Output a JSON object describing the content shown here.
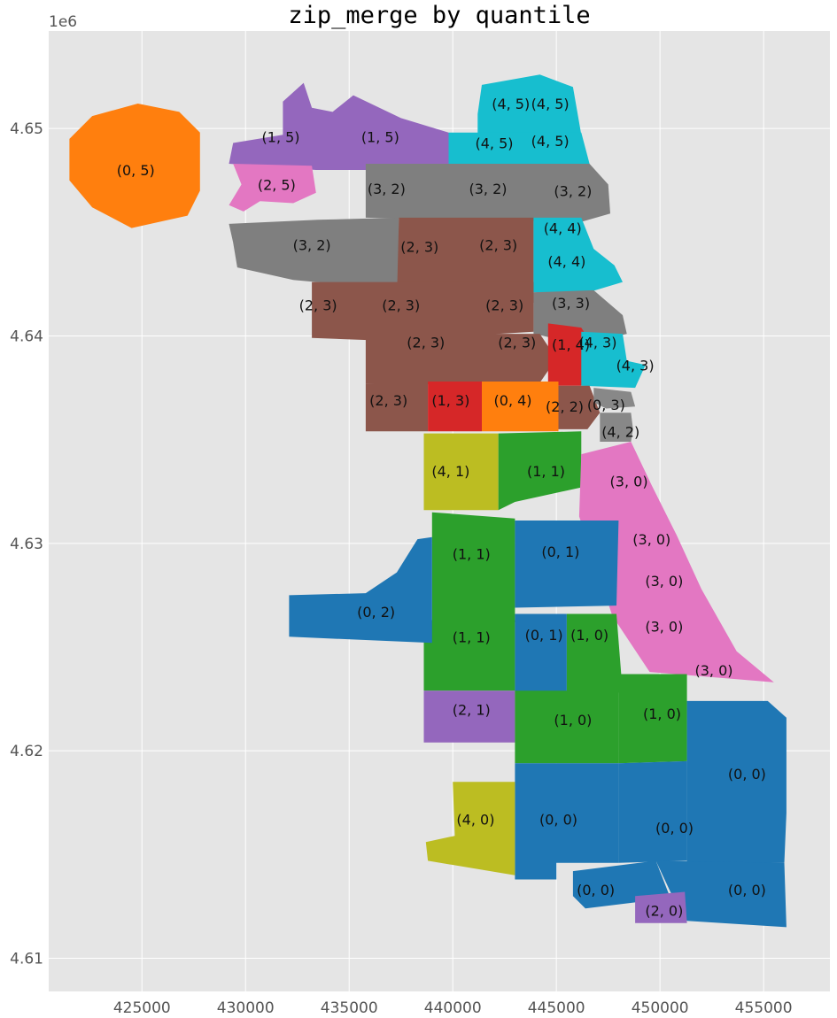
{
  "title": "zip_merge by quantile",
  "exponent_label": "1e6",
  "axes": {
    "x_ticks": [
      "425000",
      "430000",
      "435000",
      "440000",
      "445000",
      "450000",
      "455000"
    ],
    "y_ticks": [
      "4.65",
      "4.64",
      "4.63",
      "4.62",
      "4.61"
    ],
    "xlim": [
      420500,
      458200
    ],
    "ylim": [
      4608400,
      4654700
    ],
    "grid": true
  },
  "colors": {
    "plot_bg": "#e5e5e5",
    "grid": "#ffffff",
    "(0, 0)": "#1f77b4",
    "(0, 1)": "#1f77b4",
    "(0, 2)": "#1f77b4",
    "(1, 0)": "#2ca02c",
    "(1, 1)": "#2ca02c",
    "(2, 0)": "#9467bd",
    "(2, 1)": "#9467bd",
    "(1, 5)": "#9467bd",
    "(0, 5)": "#ff7f0e",
    "(0, 4)": "#ff7f0e",
    "(2, 5)": "#e377c2",
    "(3, 0)": "#e377c2",
    "(3, 2)": "#7f7f7f",
    "(3, 3)": "#7f7f7f",
    "(2, 3)": "#8c564b",
    "(2, 2)": "#8c564b",
    "(1, 3)": "#d62728",
    "(1, 4)": "#d62728",
    "(4, 0)": "#bcbd22",
    "(4, 1)": "#bcbd22",
    "(4, 3)": "#17becf",
    "(4, 4)": "#17becf",
    "(4, 5)": "#17becf"
  },
  "regions": [
    {
      "label": "(0, 5)",
      "x": 424700,
      "y": 4648000,
      "pts": [
        [
          421500,
          4649500
        ],
        [
          422600,
          4650600
        ],
        [
          424800,
          4651200
        ],
        [
          426800,
          4650800
        ],
        [
          427800,
          4649800
        ],
        [
          427800,
          4647000
        ],
        [
          427200,
          4645800
        ],
        [
          424500,
          4645200
        ],
        [
          422600,
          4646200
        ],
        [
          421500,
          4647500
        ]
      ]
    },
    {
      "label": "(1, 5)",
      "x": 431700,
      "y": 4649600,
      "pts": [
        [
          429200,
          4648300
        ],
        [
          429400,
          4649300
        ],
        [
          431800,
          4649700
        ],
        [
          431800,
          4651300
        ],
        [
          432800,
          4652200
        ],
        [
          433200,
          4651000
        ],
        [
          434200,
          4650800
        ],
        [
          435200,
          4651600
        ],
        [
          437500,
          4650500
        ],
        [
          439800,
          4649800
        ],
        [
          439800,
          4648300
        ],
        [
          437500,
          4648000
        ],
        [
          433400,
          4648000
        ]
      ]
    },
    {
      "label": "(1, 5)",
      "x": 436500,
      "y": 4649600,
      "pts": []
    },
    {
      "label": "(2, 5)",
      "x": 431500,
      "y": 4647300,
      "pts": [
        [
          429400,
          4648300
        ],
        [
          433200,
          4648200
        ],
        [
          433400,
          4646900
        ],
        [
          432300,
          4646400
        ],
        [
          430700,
          4646500
        ],
        [
          429900,
          4646000
        ],
        [
          429200,
          4646300
        ],
        [
          429800,
          4647300
        ]
      ]
    },
    {
      "label": "(4, 5)",
      "x": 442800,
      "y": 4651200,
      "pts": [
        [
          441200,
          4650700
        ],
        [
          441400,
          4652100
        ],
        [
          444200,
          4652600
        ],
        [
          445800,
          4652000
        ],
        [
          446200,
          4649700
        ],
        [
          441200,
          4649600
        ]
      ]
    },
    {
      "label": "(4, 5)",
      "x": 444700,
      "y": 4651200,
      "pts": []
    },
    {
      "label": "(4, 5)",
      "x": 442000,
      "y": 4649300,
      "pts": [
        [
          439800,
          4648300
        ],
        [
          439800,
          4649800
        ],
        [
          446200,
          4649800
        ],
        [
          446600,
          4648300
        ]
      ]
    },
    {
      "label": "(4, 5)",
      "x": 444700,
      "y": 4649400,
      "pts": []
    },
    {
      "label": "(3, 2)",
      "x": 436800,
      "y": 4647100,
      "pts": [
        [
          435800,
          4648300
        ],
        [
          446600,
          4648300
        ],
        [
          447500,
          4647300
        ],
        [
          447600,
          4645900
        ],
        [
          446200,
          4645500
        ],
        [
          435800,
          4645700
        ]
      ]
    },
    {
      "label": "(3, 2)",
      "x": 441700,
      "y": 4647100,
      "pts": []
    },
    {
      "label": "(3, 2)",
      "x": 445800,
      "y": 4647000,
      "pts": []
    },
    {
      "label": "(3, 2)",
      "x": 433200,
      "y": 4644400,
      "pts": [
        [
          429200,
          4645400
        ],
        [
          433500,
          4645600
        ],
        [
          437400,
          4645700
        ],
        [
          437400,
          4642300
        ],
        [
          434500,
          4642500
        ],
        [
          432300,
          4642700
        ],
        [
          429600,
          4643300
        ],
        [
          429400,
          4644500
        ]
      ]
    },
    {
      "label": "(2, 3)",
      "x": 438400,
      "y": 4644300,
      "pts": [
        [
          437400,
          4645700
        ],
        [
          443900,
          4645700
        ],
        [
          443900,
          4641600
        ],
        [
          437300,
          4641600
        ]
      ]
    },
    {
      "label": "(2, 3)",
      "x": 442200,
      "y": 4644400,
      "pts": []
    },
    {
      "label": "(4, 4)",
      "x": 445300,
      "y": 4645200,
      "pts": [
        [
          443900,
          4645700
        ],
        [
          446200,
          4645700
        ],
        [
          446800,
          4644200
        ],
        [
          447800,
          4643400
        ],
        [
          448200,
          4642600
        ],
        [
          446200,
          4642000
        ],
        [
          443900,
          4642100
        ]
      ]
    },
    {
      "label": "(4, 4)",
      "x": 445500,
      "y": 4643600,
      "pts": []
    },
    {
      "label": "(3, 3)",
      "x": 445700,
      "y": 4641600,
      "pts": [
        [
          443900,
          4642100
        ],
        [
          446800,
          4642200
        ],
        [
          448200,
          4641000
        ],
        [
          448400,
          4640100
        ],
        [
          446200,
          4639600
        ],
        [
          443900,
          4640100
        ]
      ]
    },
    {
      "label": "(2, 3)",
      "x": 433500,
      "y": 4641500,
      "pts": [
        [
          433200,
          4642600
        ],
        [
          443900,
          4642600
        ],
        [
          443900,
          4640200
        ],
        [
          442200,
          4640100
        ],
        [
          438600,
          4639700
        ],
        [
          433200,
          4639900
        ]
      ]
    },
    {
      "label": "(2, 3)",
      "x": 437500,
      "y": 4641500,
      "pts": []
    },
    {
      "label": "(2, 3)",
      "x": 442500,
      "y": 4641500,
      "pts": []
    },
    {
      "label": "(2, 3)",
      "x": 438700,
      "y": 4639700,
      "pts": [
        [
          435800,
          4640100
        ],
        [
          444200,
          4640100
        ],
        [
          445000,
          4638900
        ],
        [
          444100,
          4637600
        ],
        [
          435800,
          4637700
        ]
      ]
    },
    {
      "label": "(2, 3)",
      "x": 443100,
      "y": 4639700,
      "pts": []
    },
    {
      "label": "(2, 3)",
      "x": 436900,
      "y": 4636900,
      "pts": [
        [
          435800,
          4637700
        ],
        [
          438800,
          4637700
        ],
        [
          438800,
          4635400
        ],
        [
          435800,
          4635400
        ]
      ]
    },
    {
      "label": "(1, 4)",
      "x": 445700,
      "y": 4639600,
      "pts": [
        [
          444600,
          4640600
        ],
        [
          446200,
          4640400
        ],
        [
          446800,
          4639400
        ],
        [
          446200,
          4637600
        ],
        [
          444600,
          4637600
        ]
      ]
    },
    {
      "label": "(4, 3)",
      "x": 447000,
      "y": 4639700,
      "pts": [
        [
          446200,
          4640200
        ],
        [
          448200,
          4640100
        ],
        [
          448400,
          4638800
        ],
        [
          449300,
          4638600
        ],
        [
          448800,
          4637500
        ],
        [
          446200,
          4637600
        ]
      ]
    },
    {
      "label": "(4, 3)",
      "x": 448800,
      "y": 4638600,
      "pts": []
    },
    {
      "label": "(1, 3)",
      "x": 439900,
      "y": 4636900,
      "pts": [
        [
          438800,
          4637800
        ],
        [
          441400,
          4637800
        ],
        [
          441400,
          4635400
        ],
        [
          438800,
          4635400
        ]
      ]
    },
    {
      "label": "(0, 4)",
      "x": 442900,
      "y": 4636900,
      "pts": [
        [
          441400,
          4637800
        ],
        [
          445100,
          4637800
        ],
        [
          445100,
          4635400
        ],
        [
          441400,
          4635400
        ]
      ]
    },
    {
      "label": "(2, 2)",
      "x": 445400,
      "y": 4636600,
      "pts": [
        [
          445100,
          4637600
        ],
        [
          446600,
          4637600
        ],
        [
          447100,
          4636300
        ],
        [
          446500,
          4635500
        ],
        [
          445100,
          4635500
        ]
      ]
    },
    {
      "label": "(0, 3)",
      "x": 447400,
      "y": 4636700,
      "pts": [
        [
          446800,
          4637500
        ],
        [
          448600,
          4637300
        ],
        [
          448800,
          4636600
        ],
        [
          447400,
          4636500
        ],
        [
          446800,
          4636800
        ]
      ]
    },
    {
      "label": "(4, 2)",
      "x": 448100,
      "y": 4635400,
      "pts": [
        [
          447100,
          4636300
        ],
        [
          448600,
          4636300
        ],
        [
          448700,
          4635500
        ],
        [
          448600,
          4634900
        ],
        [
          447100,
          4634900
        ]
      ]
    },
    {
      "label": "(4, 1)",
      "x": 439900,
      "y": 4633500,
      "pts": [
        [
          438600,
          4635300
        ],
        [
          442200,
          4635300
        ],
        [
          442200,
          4631600
        ],
        [
          438600,
          4631600
        ]
      ]
    },
    {
      "label": "(1, 1)",
      "x": 444500,
      "y": 4633500,
      "pts": [
        [
          442200,
          4635300
        ],
        [
          446200,
          4635400
        ],
        [
          446200,
          4632700
        ],
        [
          443000,
          4632000
        ],
        [
          442200,
          4631600
        ]
      ]
    },
    {
      "label": "(3, 0)",
      "x": 448500,
      "y": 4633000,
      "pts": [
        [
          446200,
          4634300
        ],
        [
          448600,
          4634900
        ],
        [
          449600,
          4632800
        ],
        [
          450800,
          4630400
        ],
        [
          452000,
          4627800
        ],
        [
          453700,
          4624800
        ],
        [
          455500,
          4623300
        ],
        [
          449500,
          4623800
        ],
        [
          447700,
          4626500
        ],
        [
          446100,
          4631300
        ]
      ]
    },
    {
      "label": "(3, 0)",
      "x": 449600,
      "y": 4630200,
      "pts": []
    },
    {
      "label": "(3, 0)",
      "x": 450200,
      "y": 4628200,
      "pts": []
    },
    {
      "label": "(3, 0)",
      "x": 450200,
      "y": 4626000,
      "pts": []
    },
    {
      "label": "(3, 0)",
      "x": 452600,
      "y": 4623900,
      "pts": []
    },
    {
      "label": "(1, 1)",
      "x": 440900,
      "y": 4629500,
      "pts": [
        [
          439000,
          4631500
        ],
        [
          443000,
          4631200
        ],
        [
          443000,
          4626200
        ],
        [
          439000,
          4626200
        ],
        [
          439000,
          4629800
        ]
      ]
    },
    {
      "label": "(1, 1)",
      "x": 440900,
      "y": 4625500,
      "pts": [
        [
          438600,
          4626300
        ],
        [
          443000,
          4626300
        ],
        [
          443000,
          4622900
        ],
        [
          438600,
          4622900
        ]
      ]
    },
    {
      "label": "(0, 1)",
      "x": 445200,
      "y": 4629600,
      "pts": [
        [
          443000,
          4631100
        ],
        [
          448000,
          4631100
        ],
        [
          447900,
          4627000
        ],
        [
          443000,
          4626900
        ]
      ]
    },
    {
      "label": "(0, 1)",
      "x": 444400,
      "y": 4625600,
      "pts": [
        [
          443000,
          4626600
        ],
        [
          445500,
          4626600
        ],
        [
          445500,
          4622800
        ],
        [
          443000,
          4622800
        ]
      ]
    },
    {
      "label": "(1, 0)",
      "x": 446600,
      "y": 4625600,
      "pts": [
        [
          445500,
          4626600
        ],
        [
          447900,
          4626600
        ],
        [
          448200,
          4622800
        ],
        [
          445500,
          4622800
        ]
      ]
    },
    {
      "label": "(0, 2)",
      "x": 436300,
      "y": 4626700,
      "pts": [
        [
          432100,
          4627500
        ],
        [
          435800,
          4627600
        ],
        [
          437300,
          4628600
        ],
        [
          438300,
          4630200
        ],
        [
          439000,
          4630300
        ],
        [
          439000,
          4625200
        ],
        [
          432100,
          4625500
        ]
      ]
    },
    {
      "label": "(2, 1)",
      "x": 440900,
      "y": 4622000,
      "pts": [
        [
          438600,
          4622900
        ],
        [
          443000,
          4622900
        ],
        [
          443000,
          4620400
        ],
        [
          438600,
          4620400
        ]
      ]
    },
    {
      "label": "(1, 0)",
      "x": 445800,
      "y": 4621500,
      "pts": [
        [
          443000,
          4622900
        ],
        [
          448000,
          4622900
        ],
        [
          448000,
          4619400
        ],
        [
          443000,
          4619400
        ]
      ]
    },
    {
      "label": "(1, 0)",
      "x": 450100,
      "y": 4621800,
      "pts": [
        [
          448000,
          4623700
        ],
        [
          451300,
          4623700
        ],
        [
          451300,
          4619500
        ],
        [
          448000,
          4619400
        ]
      ]
    },
    {
      "label": "(0, 0)",
      "x": 454200,
      "y": 4618900,
      "pts": [
        [
          451300,
          4622400
        ],
        [
          455200,
          4622400
        ],
        [
          456100,
          4621600
        ],
        [
          456100,
          4617000
        ],
        [
          456000,
          4614600
        ],
        [
          451300,
          4614600
        ]
      ]
    },
    {
      "label": "(0, 0)",
      "x": 445100,
      "y": 4616700,
      "pts": [
        [
          443000,
          4619400
        ],
        [
          448000,
          4619400
        ],
        [
          448000,
          4616000
        ],
        [
          448000,
          4614600
        ],
        [
          445000,
          4614600
        ],
        [
          445000,
          4613800
        ],
        [
          443000,
          4613800
        ]
      ]
    },
    {
      "label": "(0, 0)",
      "x": 450700,
      "y": 4616300,
      "pts": [
        [
          448000,
          4619400
        ],
        [
          451300,
          4619500
        ],
        [
          451300,
          4614700
        ],
        [
          448000,
          4614600
        ]
      ]
    },
    {
      "label": "(0, 0)",
      "x": 454200,
      "y": 4613300,
      "pts": [
        [
          449800,
          4614700
        ],
        [
          456000,
          4614600
        ],
        [
          456100,
          4611500
        ],
        [
          451300,
          4611800
        ],
        [
          450500,
          4613200
        ]
      ]
    },
    {
      "label": "(0, 0)",
      "x": 446900,
      "y": 4613300,
      "pts": [
        [
          445800,
          4614200
        ],
        [
          449800,
          4614700
        ],
        [
          450500,
          4612900
        ],
        [
          446400,
          4612400
        ],
        [
          445800,
          4613000
        ]
      ]
    },
    {
      "label": "(4, 0)",
      "x": 441100,
      "y": 4616700,
      "pts": [
        [
          440000,
          4618500
        ],
        [
          443000,
          4618500
        ],
        [
          443000,
          4614000
        ],
        [
          438800,
          4614700
        ],
        [
          438700,
          4615600
        ],
        [
          440100,
          4615900
        ]
      ]
    },
    {
      "label": "(2, 0)",
      "x": 450200,
      "y": 4612300,
      "pts": [
        [
          448800,
          4613000
        ],
        [
          451200,
          4613200
        ],
        [
          451300,
          4611700
        ],
        [
          448800,
          4611700
        ]
      ]
    }
  ]
}
